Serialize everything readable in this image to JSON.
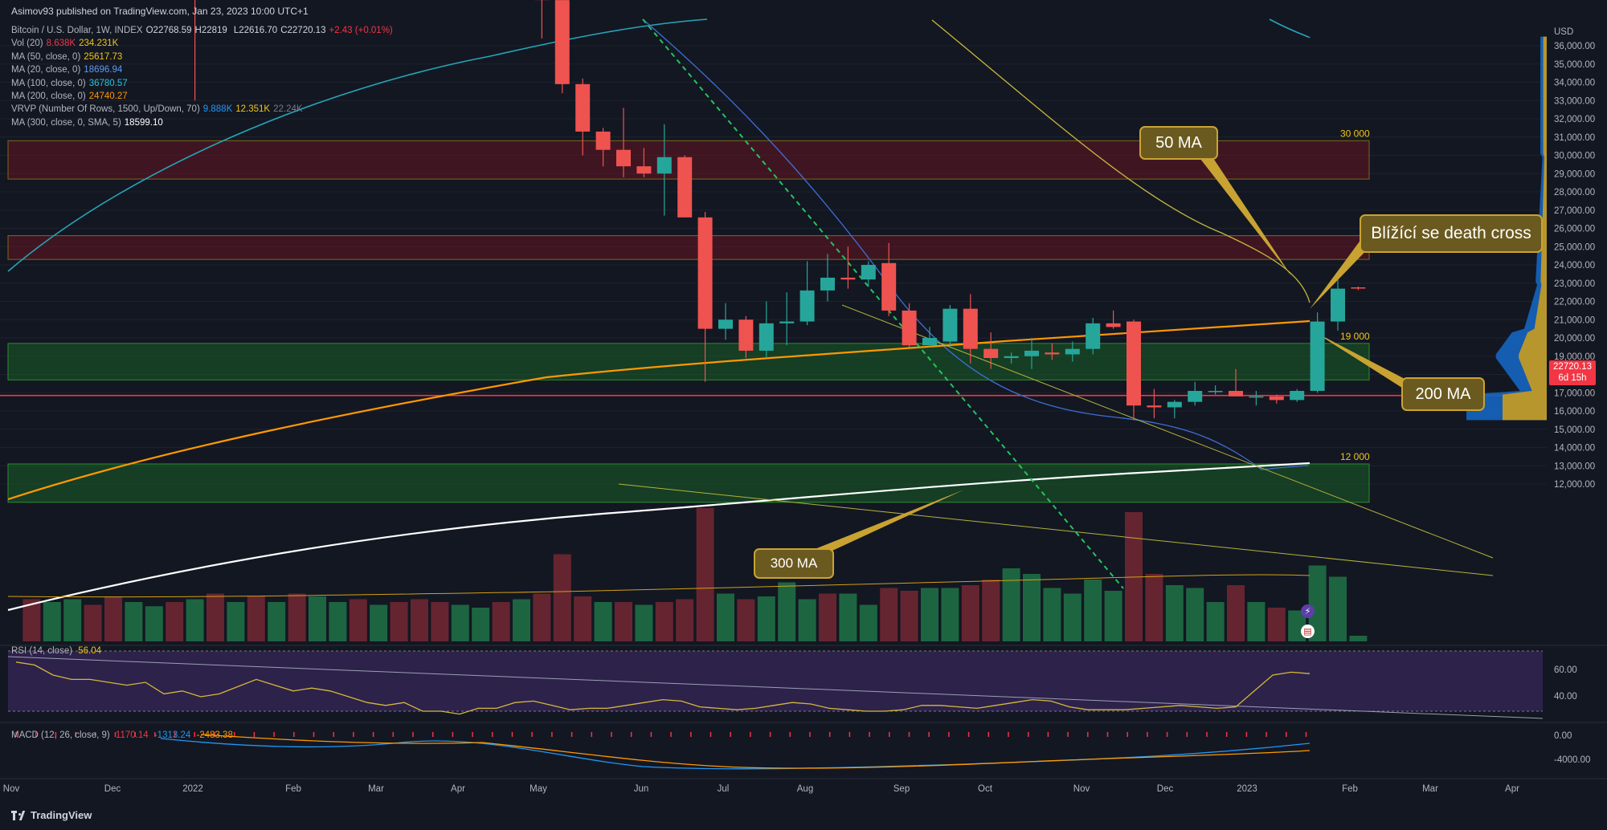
{
  "header": "Asimov93 published on TradingView.com, Jan 23, 2023 10:00 UTC+1",
  "legend": [
    {
      "label": "Bitcoin / U.S. Dollar, 1W, INDEX",
      "values": [
        "O22768.59",
        "H22819",
        "",
        "L22616.70",
        "C22720.13",
        "+2.43 (+0.01%)"
      ],
      "colors": [
        "#d1d4dc",
        "#d1d4dc",
        "#d1d4dc",
        "#d1d4dc",
        "#d1d4dc",
        "#f23645"
      ]
    },
    {
      "label": "Vol (20)",
      "values": [
        "8.638K",
        "234.231K"
      ],
      "colors": [
        "#f23645",
        "#f0c419"
      ]
    },
    {
      "label": "MA (50, close, 0)",
      "values": [
        "25617.73"
      ],
      "colors": [
        "#f0c419"
      ]
    },
    {
      "label": "MA (20, close, 0)",
      "values": [
        "18696.94"
      ],
      "colors": [
        "#5b9cf6"
      ]
    },
    {
      "label": "MA (100, close, 0)",
      "values": [
        "36780.57"
      ],
      "colors": [
        "#26c6da"
      ]
    },
    {
      "label": "MA (200, close, 0)",
      "values": [
        "24740.27"
      ],
      "colors": [
        "#ff9800"
      ]
    },
    {
      "label": "VRVP (Number Of Rows, 1500, Up/Down, 70)",
      "values": [
        "9.888K",
        "12.351K",
        "22.24K"
      ],
      "colors": [
        "#2196f3",
        "#f0c419",
        "#787b86"
      ]
    },
    {
      "label": "MA (300, close, 0, SMA, 5)",
      "values": [
        "18599.10"
      ],
      "colors": [
        "#ffffff"
      ]
    }
  ],
  "chart_data": {
    "type": "candlestick",
    "interval": "1W",
    "symbol": "Bitcoin / U.S. Dollar",
    "currency": "USD",
    "y_axis": {
      "min": 11000,
      "max": 37000,
      "ticks": [
        12000,
        13000,
        14000,
        15000,
        16000,
        17000,
        18000,
        19000,
        20000,
        21000,
        22000,
        23000,
        24000,
        25000,
        26000,
        27000,
        28000,
        29000,
        30000,
        31000,
        32000,
        33000,
        34000,
        35000,
        36000
      ],
      "tick_format": "##,###.00"
    },
    "x_axis": {
      "labels": [
        "Nov",
        "Dec",
        "2022",
        "Feb",
        "Mar",
        "Apr",
        "May",
        "Jun",
        "Jul",
        "Aug",
        "Sep",
        "Oct",
        "Nov",
        "Dec",
        "2023",
        "Feb",
        "Mar",
        "Apr"
      ]
    },
    "visible_weeks": 56,
    "candles": [
      [
        12,
        null,
        null,
        null,
        null
      ],
      [
        28,
        40900,
        44500,
        40600,
        44100
      ],
      [
        29,
        44100,
        44800,
        33000,
        42500
      ],
      [
        46,
        39700,
        40500,
        36400,
        38500
      ],
      [
        47,
        38500,
        40000,
        33400,
        33900
      ],
      [
        48,
        33900,
        34200,
        30000,
        31300
      ],
      [
        49,
        31300,
        31500,
        29400,
        30300
      ],
      [
        50,
        30300,
        32600,
        28800,
        29400
      ],
      [
        51,
        29400,
        30400,
        28800,
        29000
      ],
      [
        52,
        29000,
        31700,
        26700,
        29900
      ],
      [
        53,
        29900,
        30000,
        26600,
        26600
      ],
      [
        54,
        26600,
        26900,
        17600,
        20500
      ],
      [
        55,
        20500,
        21900,
        19900,
        21000
      ],
      [
        56,
        21000,
        21200,
        18900,
        19300
      ],
      [
        57,
        19300,
        22000,
        18900,
        20800
      ],
      [
        58,
        20800,
        22500,
        19600,
        20900
      ],
      [
        59,
        20900,
        24200,
        20700,
        22600
      ],
      [
        60,
        22600,
        24600,
        22000,
        23300
      ],
      [
        61,
        23300,
        25000,
        22700,
        23200
      ],
      [
        62,
        23200,
        24200,
        22800,
        24000
      ],
      [
        63,
        24100,
        25200,
        21200,
        21500
      ],
      [
        64,
        21500,
        21900,
        19500,
        19600
      ],
      [
        65,
        19600,
        20600,
        19500,
        20000
      ],
      [
        66,
        19800,
        21800,
        19600,
        21600
      ],
      [
        67,
        21600,
        22400,
        18600,
        19400
      ],
      [
        68,
        19400,
        20300,
        18300,
        18900
      ],
      [
        69,
        18900,
        19200,
        18600,
        19000
      ],
      [
        70,
        19000,
        20000,
        18300,
        19300
      ],
      [
        71,
        19200,
        19700,
        18800,
        19100
      ],
      [
        72,
        19100,
        19800,
        18700,
        19400
      ],
      [
        73,
        19400,
        21100,
        19100,
        20800
      ],
      [
        74,
        20800,
        21500,
        20500,
        20600
      ],
      [
        75,
        20900,
        21000,
        15500,
        16300
      ],
      [
        76,
        16300,
        17200,
        15600,
        16200
      ],
      [
        77,
        16200,
        16600,
        15600,
        16500
      ],
      [
        78,
        16500,
        17600,
        16300,
        17100
      ],
      [
        79,
        17100,
        17400,
        16900,
        17100
      ],
      [
        80,
        17100,
        18300,
        16800,
        16800
      ],
      [
        81,
        16800,
        17100,
        16300,
        16800
      ],
      [
        82,
        16800,
        16900,
        16400,
        16600
      ],
      [
        83,
        16600,
        17200,
        16500,
        17100
      ],
      [
        84,
        17100,
        21400,
        17000,
        20900
      ],
      [
        85,
        20900,
        23200,
        20400,
        22700
      ],
      [
        86,
        22769,
        22819,
        22617,
        22720
      ]
    ],
    "volume": [
      [
        21,
        0.3,
        "d"
      ],
      [
        22,
        0.28,
        "u"
      ],
      [
        23,
        0.3,
        "u"
      ],
      [
        24,
        0.26,
        "d"
      ],
      [
        25,
        0.32,
        "d"
      ],
      [
        26,
        0.28,
        "u"
      ],
      [
        27,
        0.25,
        "u"
      ],
      [
        28,
        0.28,
        "d"
      ],
      [
        29,
        0.3,
        "u"
      ],
      [
        30,
        0.34,
        "d"
      ],
      [
        31,
        0.28,
        "u"
      ],
      [
        32,
        0.32,
        "d"
      ],
      [
        33,
        0.28,
        "u"
      ],
      [
        34,
        0.34,
        "d"
      ],
      [
        35,
        0.32,
        "u"
      ],
      [
        36,
        0.28,
        "u"
      ],
      [
        37,
        0.3,
        "d"
      ],
      [
        38,
        0.26,
        "u"
      ],
      [
        39,
        0.28,
        "d"
      ],
      [
        40,
        0.3,
        "d"
      ],
      [
        41,
        0.28,
        "d"
      ],
      [
        42,
        0.26,
        "u"
      ],
      [
        43,
        0.24,
        "u"
      ],
      [
        44,
        0.28,
        "d"
      ],
      [
        45,
        0.3,
        "u"
      ],
      [
        46,
        0.34,
        "d"
      ],
      [
        47,
        0.62,
        "d"
      ],
      [
        48,
        0.32,
        "d"
      ],
      [
        49,
        0.28,
        "u"
      ],
      [
        50,
        0.28,
        "d"
      ],
      [
        51,
        0.26,
        "u"
      ],
      [
        52,
        0.28,
        "d"
      ],
      [
        53,
        0.3,
        "d"
      ],
      [
        54,
        0.95,
        "d"
      ],
      [
        55,
        0.34,
        "u"
      ],
      [
        56,
        0.3,
        "d"
      ],
      [
        57,
        0.32,
        "u"
      ],
      [
        58,
        0.42,
        "u"
      ],
      [
        59,
        0.3,
        "u"
      ],
      [
        60,
        0.34,
        "d"
      ],
      [
        61,
        0.34,
        "u"
      ],
      [
        62,
        0.26,
        "u"
      ],
      [
        63,
        0.38,
        "d"
      ],
      [
        64,
        0.36,
        "d"
      ],
      [
        65,
        0.38,
        "u"
      ],
      [
        66,
        0.38,
        "u"
      ],
      [
        67,
        0.4,
        "d"
      ],
      [
        68,
        0.44,
        "d"
      ],
      [
        69,
        0.52,
        "u"
      ],
      [
        70,
        0.48,
        "u"
      ],
      [
        71,
        0.38,
        "u"
      ],
      [
        72,
        0.34,
        "u"
      ],
      [
        73,
        0.44,
        "u"
      ],
      [
        74,
        0.36,
        "u"
      ],
      [
        75,
        0.92,
        "d"
      ],
      [
        76,
        0.48,
        "d"
      ],
      [
        77,
        0.4,
        "u"
      ],
      [
        78,
        0.38,
        "u"
      ],
      [
        79,
        0.28,
        "u"
      ],
      [
        80,
        0.4,
        "d"
      ],
      [
        81,
        0.28,
        "u"
      ],
      [
        82,
        0.24,
        "d"
      ],
      [
        83,
        0.22,
        "u"
      ],
      [
        84,
        0.54,
        "u"
      ],
      [
        85,
        0.46,
        "u"
      ],
      [
        86,
        0.04,
        "u"
      ]
    ],
    "zones": [
      {
        "label": "30 000",
        "low": 28700,
        "high": 30800,
        "color": "red"
      },
      {
        "label": "",
        "low": 24300,
        "high": 25600,
        "color": "red"
      },
      {
        "label": "19 000",
        "low": 17700,
        "high": 19700,
        "color": "green"
      },
      {
        "label": "12 000",
        "low": 11000,
        "high": 13100,
        "color": "green"
      }
    ],
    "horizontal_line": {
      "value": 16850,
      "color": "#f23645"
    },
    "callouts": [
      "50 MA",
      "Blížící se death cross",
      "200 MA",
      "300 MA"
    ],
    "current_price": {
      "value": "22720.13",
      "countdown": "6d 15h"
    },
    "rsi": {
      "label": "RSI (14, close)",
      "value": "56.04",
      "ticks": [
        "60.00",
        "40.00"
      ],
      "values": [
        64,
        62,
        55,
        52,
        52,
        50,
        48,
        50,
        42,
        44,
        40,
        42,
        47,
        52,
        48,
        44,
        46,
        44,
        40,
        36,
        34,
        36,
        30,
        30,
        28,
        32,
        32,
        36,
        37,
        34,
        31,
        32,
        32,
        34,
        36,
        38,
        37,
        33,
        32,
        31,
        32,
        34,
        36,
        35,
        32,
        31,
        30,
        30,
        31,
        34,
        34,
        33,
        32,
        34,
        36,
        38,
        37,
        33,
        31,
        31,
        31,
        32,
        33,
        34,
        33,
        32,
        33,
        44,
        55,
        57,
        56
      ]
    },
    "macd": {
      "label": "MACD (12, 26, close, 9)",
      "values": [
        "1170.14",
        "-1313.24",
        "-2483.38"
      ],
      "colors": [
        "#f23645",
        "#2196f3",
        "#ff9800"
      ],
      "ticks": [
        "0.00",
        "-4000.00"
      ]
    }
  }
}
